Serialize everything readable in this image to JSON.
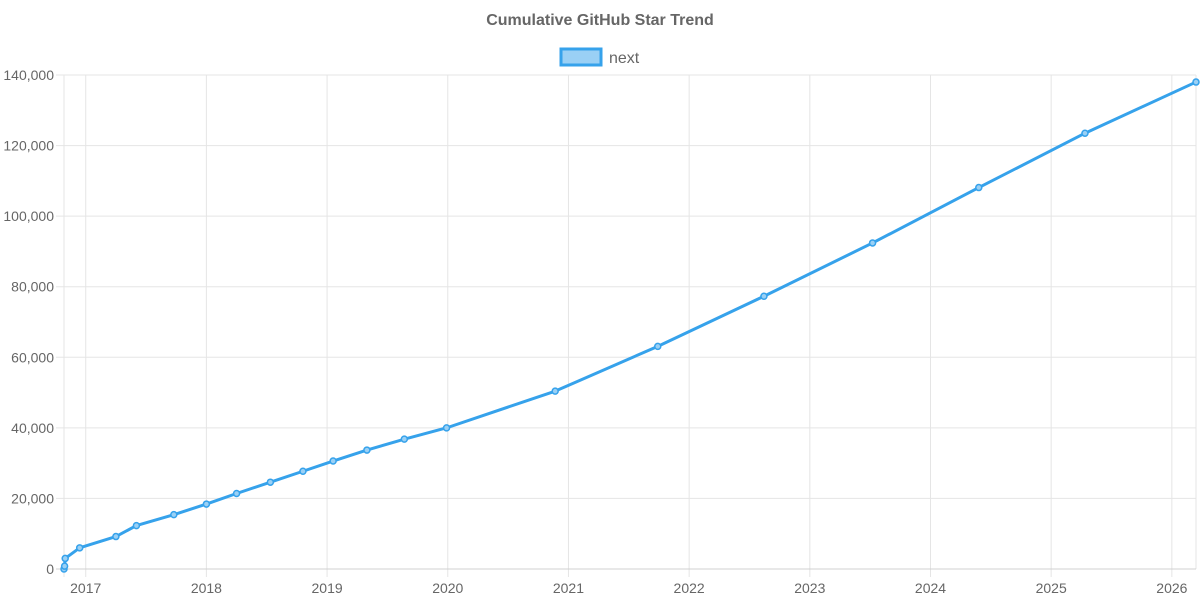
{
  "chart_data": {
    "type": "line",
    "title": "Cumulative GitHub Star Trend",
    "xlabel": "",
    "ylabel": "",
    "legend_position": "top-center",
    "grid": true,
    "x_ticks": [
      "2017",
      "2018",
      "2019",
      "2020",
      "2021",
      "2022",
      "2023",
      "2024",
      "2025",
      "2026"
    ],
    "y_ticks": [
      "0",
      "20,000",
      "40,000",
      "60,000",
      "80,000",
      "100,000",
      "120,000",
      "140,000"
    ],
    "xlim": [
      2016.82,
      2026.2
    ],
    "ylim": [
      0,
      140000
    ],
    "series": [
      {
        "name": "next",
        "color": "#36a2eb",
        "fill_color": "#9ad0f5",
        "x": [
          2016.82,
          2016.825,
          2016.83,
          2016.95,
          2017.25,
          2017.42,
          2017.73,
          2018.0,
          2018.25,
          2018.53,
          2018.8,
          2019.05,
          2019.33,
          2019.64,
          2019.99,
          2020.89,
          2021.74,
          2022.62,
          2023.52,
          2024.4,
          2025.28,
          2026.2
        ],
        "values": [
          0,
          800,
          3000,
          6000,
          9200,
          12300,
          15400,
          18400,
          21400,
          24600,
          27700,
          30600,
          33700,
          36800,
          40000,
          50400,
          63100,
          77300,
          92400,
          108100,
          123500,
          138000
        ]
      }
    ]
  }
}
